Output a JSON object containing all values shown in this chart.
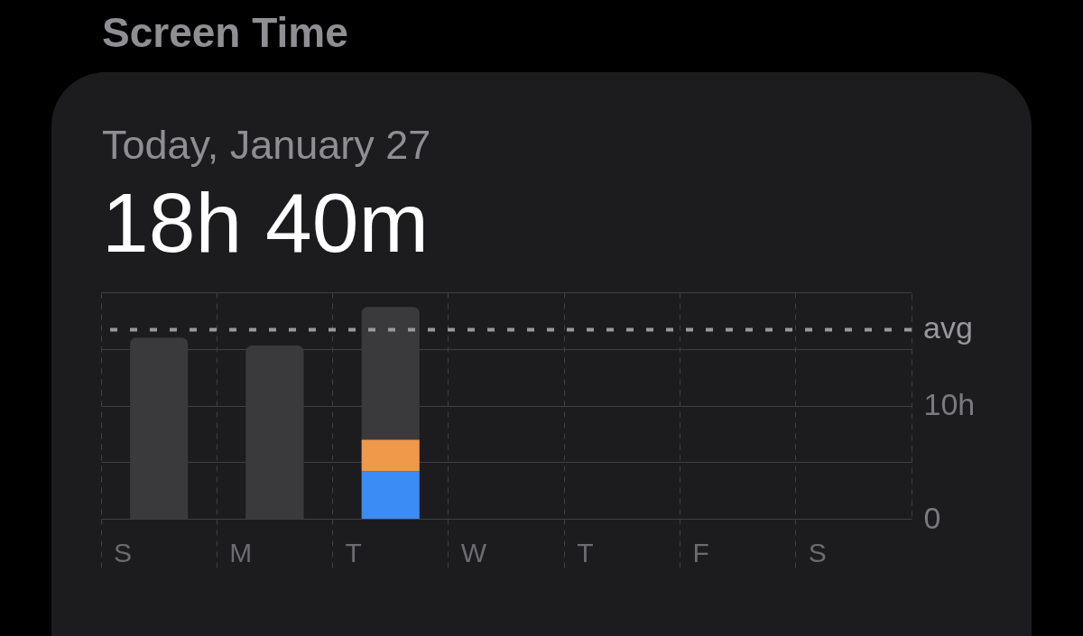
{
  "chart_data": {
    "type": "bar",
    "title": "Screen Time",
    "subtitle": "Today, January 27",
    "annotations": [
      "18h 40m"
    ],
    "categories": [
      "S",
      "M",
      "T",
      "W",
      "T",
      "F",
      "S"
    ],
    "stacked": true,
    "series": [
      {
        "color": "#3b8cf5",
        "values": [
          null,
          null,
          4.2,
          null,
          null,
          null,
          null
        ]
      },
      {
        "color": "#f0994a",
        "values": [
          null,
          null,
          2.8,
          null,
          null,
          null,
          null
        ]
      },
      {
        "color": "#3a3a3c",
        "values": [
          16.0,
          15.3,
          11.7,
          null,
          null,
          null,
          null
        ]
      }
    ],
    "ylim": [
      0,
      20
    ],
    "yticks": [
      0,
      {
        "value": 5,
        "label": null
      },
      {
        "value": 10,
        "label": "10h"
      },
      {
        "value": 15,
        "label": null
      },
      {
        "value": 20,
        "label": null
      }
    ],
    "grid": true,
    "ref_lines": [
      {
        "axis": "y",
        "value": 16.7,
        "label": "avg",
        "line_style": "dashed",
        "color": "#98989d"
      }
    ]
  }
}
